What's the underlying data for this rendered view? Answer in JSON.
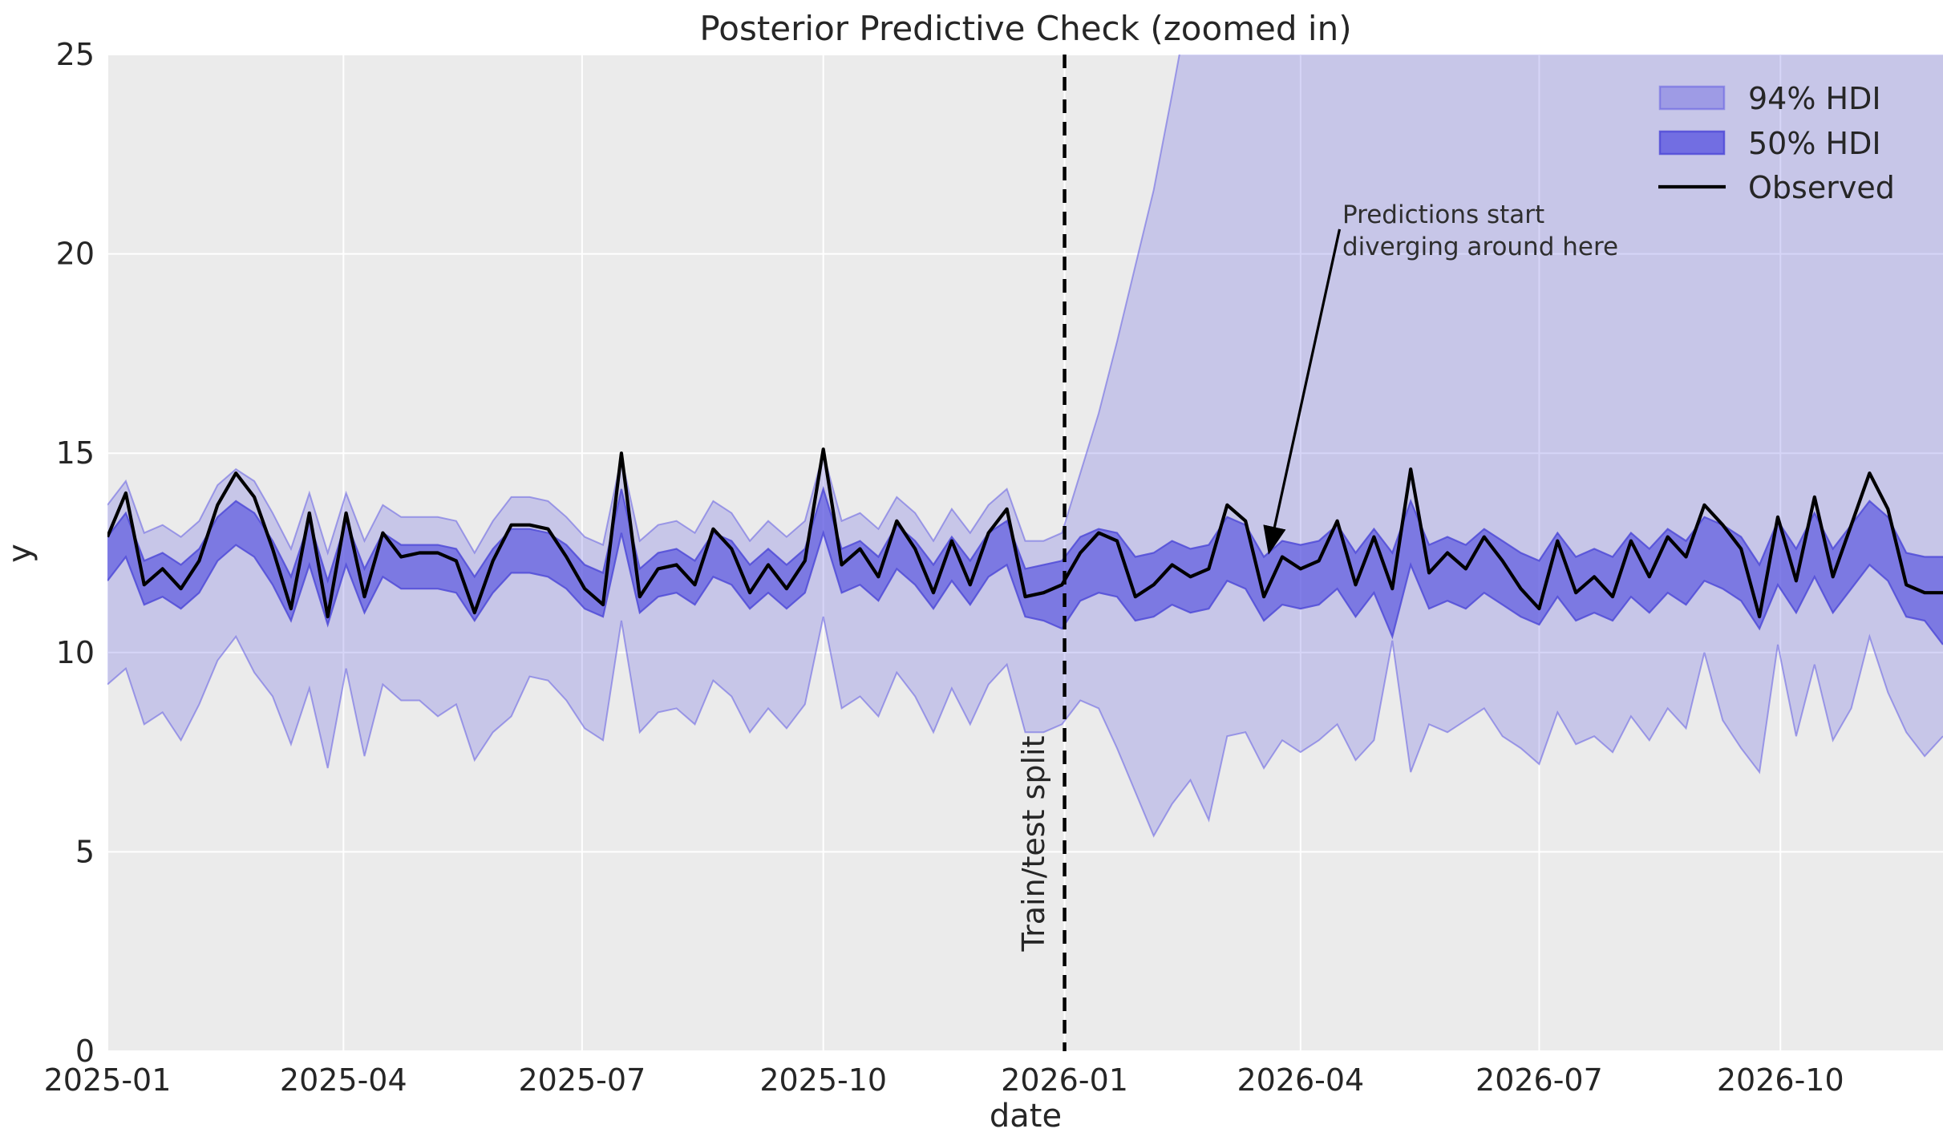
{
  "figure": {
    "title": "Posterior Predictive Check (zoomed in)",
    "xlabel": "date",
    "ylabel": "y"
  },
  "legend": {
    "items": [
      {
        "label": "94% HDI",
        "type": "patch"
      },
      {
        "label": "50% HDI",
        "type": "patch"
      },
      {
        "label": "Observed",
        "type": "line"
      }
    ]
  },
  "annotation": {
    "line1": "Predictions start",
    "line2": "diverging around here",
    "text_index": 67.3,
    "text_value": 20.9,
    "tip_index": 63.3,
    "tip_value": 12.55
  },
  "split_label": "Train/test split",
  "colors": {
    "plot_bg": "#ebebeb",
    "grid": "#ffffff",
    "band_base": "#5d58e0",
    "band94_fill_alpha": 0.25,
    "band94_edge": "rgba(100,95,225,0.55)",
    "band50_fill_alpha": 0.7,
    "band50_edge": "rgba(80,75,215,0.85)",
    "observed_line": "#000000",
    "split_line": "#000000",
    "text": "#262626"
  },
  "chart_data": {
    "type": "line",
    "title": "Posterior Predictive Check (zoomed in)",
    "xlabel": "date",
    "ylabel": "y",
    "ylim": [
      0,
      25
    ],
    "grid": true,
    "legend_position": "upper right",
    "split_index": 52.143,
    "xtick_labels": [
      "2025-01",
      "2025-04",
      "2025-07",
      "2025-10",
      "2026-01",
      "2026-04",
      "2026-07",
      "2026-10"
    ],
    "xtick_index": [
      0,
      12.857,
      25.857,
      39,
      52.143,
      65,
      78,
      91.143
    ],
    "ytick_labels": [
      "0",
      "5",
      "10",
      "15",
      "20",
      "25"
    ],
    "ytick_values": [
      0,
      5,
      10,
      15,
      20,
      25
    ],
    "x": [
      "2025-01-01",
      "2025-01-08",
      "2025-01-15",
      "2025-01-22",
      "2025-01-29",
      "2025-02-05",
      "2025-02-12",
      "2025-02-19",
      "2025-02-26",
      "2025-03-05",
      "2025-03-12",
      "2025-03-19",
      "2025-03-26",
      "2025-04-02",
      "2025-04-09",
      "2025-04-16",
      "2025-04-23",
      "2025-04-30",
      "2025-05-07",
      "2025-05-14",
      "2025-05-21",
      "2025-05-28",
      "2025-06-04",
      "2025-06-11",
      "2025-06-18",
      "2025-06-25",
      "2025-07-02",
      "2025-07-09",
      "2025-07-16",
      "2025-07-23",
      "2025-07-30",
      "2025-08-06",
      "2025-08-13",
      "2025-08-20",
      "2025-08-27",
      "2025-09-03",
      "2025-09-10",
      "2025-09-17",
      "2025-09-24",
      "2025-10-01",
      "2025-10-08",
      "2025-10-15",
      "2025-10-22",
      "2025-10-29",
      "2025-11-05",
      "2025-11-12",
      "2025-11-19",
      "2025-11-26",
      "2025-12-03",
      "2025-12-10",
      "2025-12-17",
      "2025-12-24",
      "2025-12-31",
      "2026-01-07",
      "2026-01-14",
      "2026-01-21",
      "2026-01-28",
      "2026-02-04",
      "2026-02-11",
      "2026-02-18",
      "2026-02-25",
      "2026-03-04",
      "2026-03-11",
      "2026-03-18",
      "2026-03-25",
      "2026-04-01",
      "2026-04-08",
      "2026-04-15",
      "2026-04-22",
      "2026-04-29",
      "2026-05-06",
      "2026-05-13",
      "2026-05-20",
      "2026-05-27",
      "2026-06-03",
      "2026-06-10",
      "2026-06-17",
      "2026-06-24",
      "2026-07-01",
      "2026-07-08",
      "2026-07-15",
      "2026-07-22",
      "2026-07-29",
      "2026-08-05",
      "2026-08-12",
      "2026-08-19",
      "2026-08-26",
      "2026-09-02",
      "2026-09-09",
      "2026-09-16",
      "2026-09-23",
      "2026-09-30",
      "2026-10-07",
      "2026-10-14",
      "2026-10-21",
      "2026-10-28",
      "2026-11-04",
      "2026-11-11",
      "2026-11-18",
      "2026-11-25",
      "2026-12-02"
    ],
    "series": [
      {
        "name": "observed",
        "values": [
          12.9,
          14.0,
          11.7,
          12.1,
          11.6,
          12.3,
          13.7,
          14.5,
          13.9,
          12.6,
          11.1,
          13.5,
          10.9,
          13.5,
          11.4,
          13.0,
          12.4,
          12.5,
          12.5,
          12.3,
          11.0,
          12.3,
          13.2,
          13.2,
          13.1,
          12.4,
          11.6,
          11.2,
          15.0,
          11.4,
          12.1,
          12.2,
          11.7,
          13.1,
          12.6,
          11.5,
          12.2,
          11.6,
          12.3,
          15.1,
          12.2,
          12.6,
          11.9,
          13.3,
          12.6,
          11.5,
          12.8,
          11.7,
          13.0,
          13.6,
          11.4,
          11.5,
          11.7,
          12.5,
          13.0,
          12.8,
          11.4,
          11.7,
          12.2,
          11.9,
          12.1,
          13.7,
          13.3,
          11.4,
          12.4,
          12.1,
          12.3,
          13.3,
          11.7,
          12.9,
          11.6,
          14.6,
          12.0,
          12.5,
          12.1,
          12.9,
          12.3,
          11.6,
          11.1,
          12.8,
          11.5,
          11.9,
          11.4,
          12.8,
          11.9,
          12.9,
          12.4,
          13.7,
          13.2,
          12.6,
          10.9,
          13.4,
          11.8,
          13.9,
          11.9,
          13.2,
          14.5,
          13.6,
          11.7,
          11.5,
          11.5
        ]
      },
      {
        "name": "hdi94_upper",
        "values": [
          13.7,
          14.3,
          13.0,
          13.2,
          12.9,
          13.3,
          14.2,
          14.6,
          14.3,
          13.5,
          12.6,
          14.0,
          12.5,
          14.0,
          12.8,
          13.7,
          13.4,
          13.4,
          13.4,
          13.3,
          12.5,
          13.3,
          13.9,
          13.9,
          13.8,
          13.4,
          12.9,
          12.7,
          14.9,
          12.8,
          13.2,
          13.3,
          13.0,
          13.8,
          13.5,
          12.8,
          13.3,
          12.9,
          13.3,
          15.0,
          13.3,
          13.5,
          13.1,
          13.9,
          13.5,
          12.8,
          13.6,
          13.0,
          13.7,
          14.1,
          12.8,
          12.8,
          13.0,
          14.5,
          16.0,
          17.8,
          19.7,
          21.6,
          24.0,
          26.5,
          28.0,
          29.0,
          30.0,
          30.0,
          31.0,
          30.0,
          31.0,
          32.0,
          30.0,
          31.0,
          30.0,
          33.0,
          31.0,
          30.0,
          31.0,
          32.0,
          30.0,
          31.0,
          30.0,
          31.0,
          32.0,
          30.0,
          31.0,
          32.0,
          30.0,
          31.0,
          32.0,
          31.0,
          30.0,
          31.0,
          30.0,
          31.0,
          32.0,
          31.0,
          30.0,
          31.0,
          32.0,
          31.0,
          30.0,
          31.0,
          30.0
        ]
      },
      {
        "name": "hdi94_lower",
        "values": [
          9.2,
          9.6,
          8.2,
          8.5,
          7.8,
          8.7,
          9.8,
          10.4,
          9.5,
          8.9,
          7.7,
          9.1,
          7.1,
          9.6,
          7.4,
          9.2,
          8.8,
          8.8,
          8.4,
          8.7,
          7.3,
          8.0,
          8.4,
          9.4,
          9.3,
          8.8,
          8.1,
          7.8,
          10.8,
          8.0,
          8.5,
          8.6,
          8.2,
          9.3,
          8.9,
          8.0,
          8.6,
          8.1,
          8.7,
          10.9,
          8.6,
          8.9,
          8.4,
          9.5,
          8.9,
          8.0,
          9.1,
          8.2,
          9.2,
          9.7,
          8.0,
          8.0,
          8.2,
          8.8,
          8.6,
          7.6,
          6.5,
          5.4,
          6.2,
          6.8,
          5.8,
          7.9,
          8.0,
          7.1,
          7.8,
          7.5,
          7.8,
          8.2,
          7.3,
          7.8,
          10.3,
          7.0,
          8.2,
          8.0,
          8.3,
          8.6,
          7.9,
          7.6,
          7.2,
          8.5,
          7.7,
          7.9,
          7.5,
          8.4,
          7.8,
          8.6,
          8.1,
          10.0,
          8.3,
          7.6,
          7.0,
          10.2,
          7.9,
          9.7,
          7.8,
          8.6,
          10.4,
          9.0,
          8.0,
          7.4,
          7.9
        ]
      },
      {
        "name": "hdi50_upper",
        "values": [
          12.9,
          13.5,
          12.3,
          12.5,
          12.2,
          12.6,
          13.4,
          13.8,
          13.5,
          12.8,
          11.9,
          13.3,
          11.8,
          13.3,
          12.1,
          13.0,
          12.7,
          12.7,
          12.7,
          12.6,
          11.9,
          12.6,
          13.1,
          13.1,
          13.0,
          12.7,
          12.2,
          12.0,
          14.1,
          12.1,
          12.5,
          12.6,
          12.3,
          13.0,
          12.8,
          12.2,
          12.6,
          12.2,
          12.6,
          14.1,
          12.6,
          12.8,
          12.4,
          13.2,
          12.8,
          12.2,
          12.9,
          12.3,
          13.0,
          13.3,
          12.1,
          12.2,
          12.3,
          12.9,
          13.1,
          13.0,
          12.4,
          12.5,
          12.8,
          12.6,
          12.7,
          13.4,
          13.2,
          12.4,
          12.8,
          12.7,
          12.8,
          13.2,
          12.5,
          13.1,
          12.5,
          13.8,
          12.7,
          12.9,
          12.7,
          13.1,
          12.8,
          12.5,
          12.3,
          13.0,
          12.4,
          12.6,
          12.4,
          13.0,
          12.6,
          13.1,
          12.8,
          13.4,
          13.2,
          12.9,
          12.2,
          13.3,
          12.6,
          13.5,
          12.6,
          13.2,
          13.8,
          13.4,
          12.5,
          12.4,
          12.4
        ]
      },
      {
        "name": "hdi50_lower",
        "values": [
          11.8,
          12.4,
          11.2,
          11.4,
          11.1,
          11.5,
          12.3,
          12.7,
          12.4,
          11.7,
          10.8,
          12.2,
          10.7,
          12.2,
          11.0,
          11.9,
          11.6,
          11.6,
          11.6,
          11.5,
          10.8,
          11.5,
          12.0,
          12.0,
          11.9,
          11.6,
          11.1,
          10.9,
          13.0,
          11.0,
          11.4,
          11.5,
          11.2,
          11.9,
          11.7,
          11.1,
          11.5,
          11.1,
          11.5,
          13.0,
          11.5,
          11.7,
          11.3,
          12.1,
          11.7,
          11.1,
          11.8,
          11.2,
          11.9,
          12.2,
          10.9,
          10.8,
          10.6,
          11.3,
          11.5,
          11.4,
          10.8,
          10.9,
          11.2,
          11.0,
          11.1,
          11.8,
          11.6,
          10.8,
          11.2,
          11.1,
          11.2,
          11.6,
          10.9,
          11.5,
          10.4,
          12.2,
          11.1,
          11.3,
          11.1,
          11.5,
          11.2,
          10.9,
          10.7,
          11.4,
          10.8,
          11.0,
          10.8,
          11.4,
          11.0,
          11.5,
          11.2,
          11.8,
          11.6,
          11.3,
          10.6,
          11.7,
          11.0,
          11.9,
          11.0,
          11.6,
          12.2,
          11.8,
          10.9,
          10.8,
          10.2
        ]
      }
    ]
  }
}
